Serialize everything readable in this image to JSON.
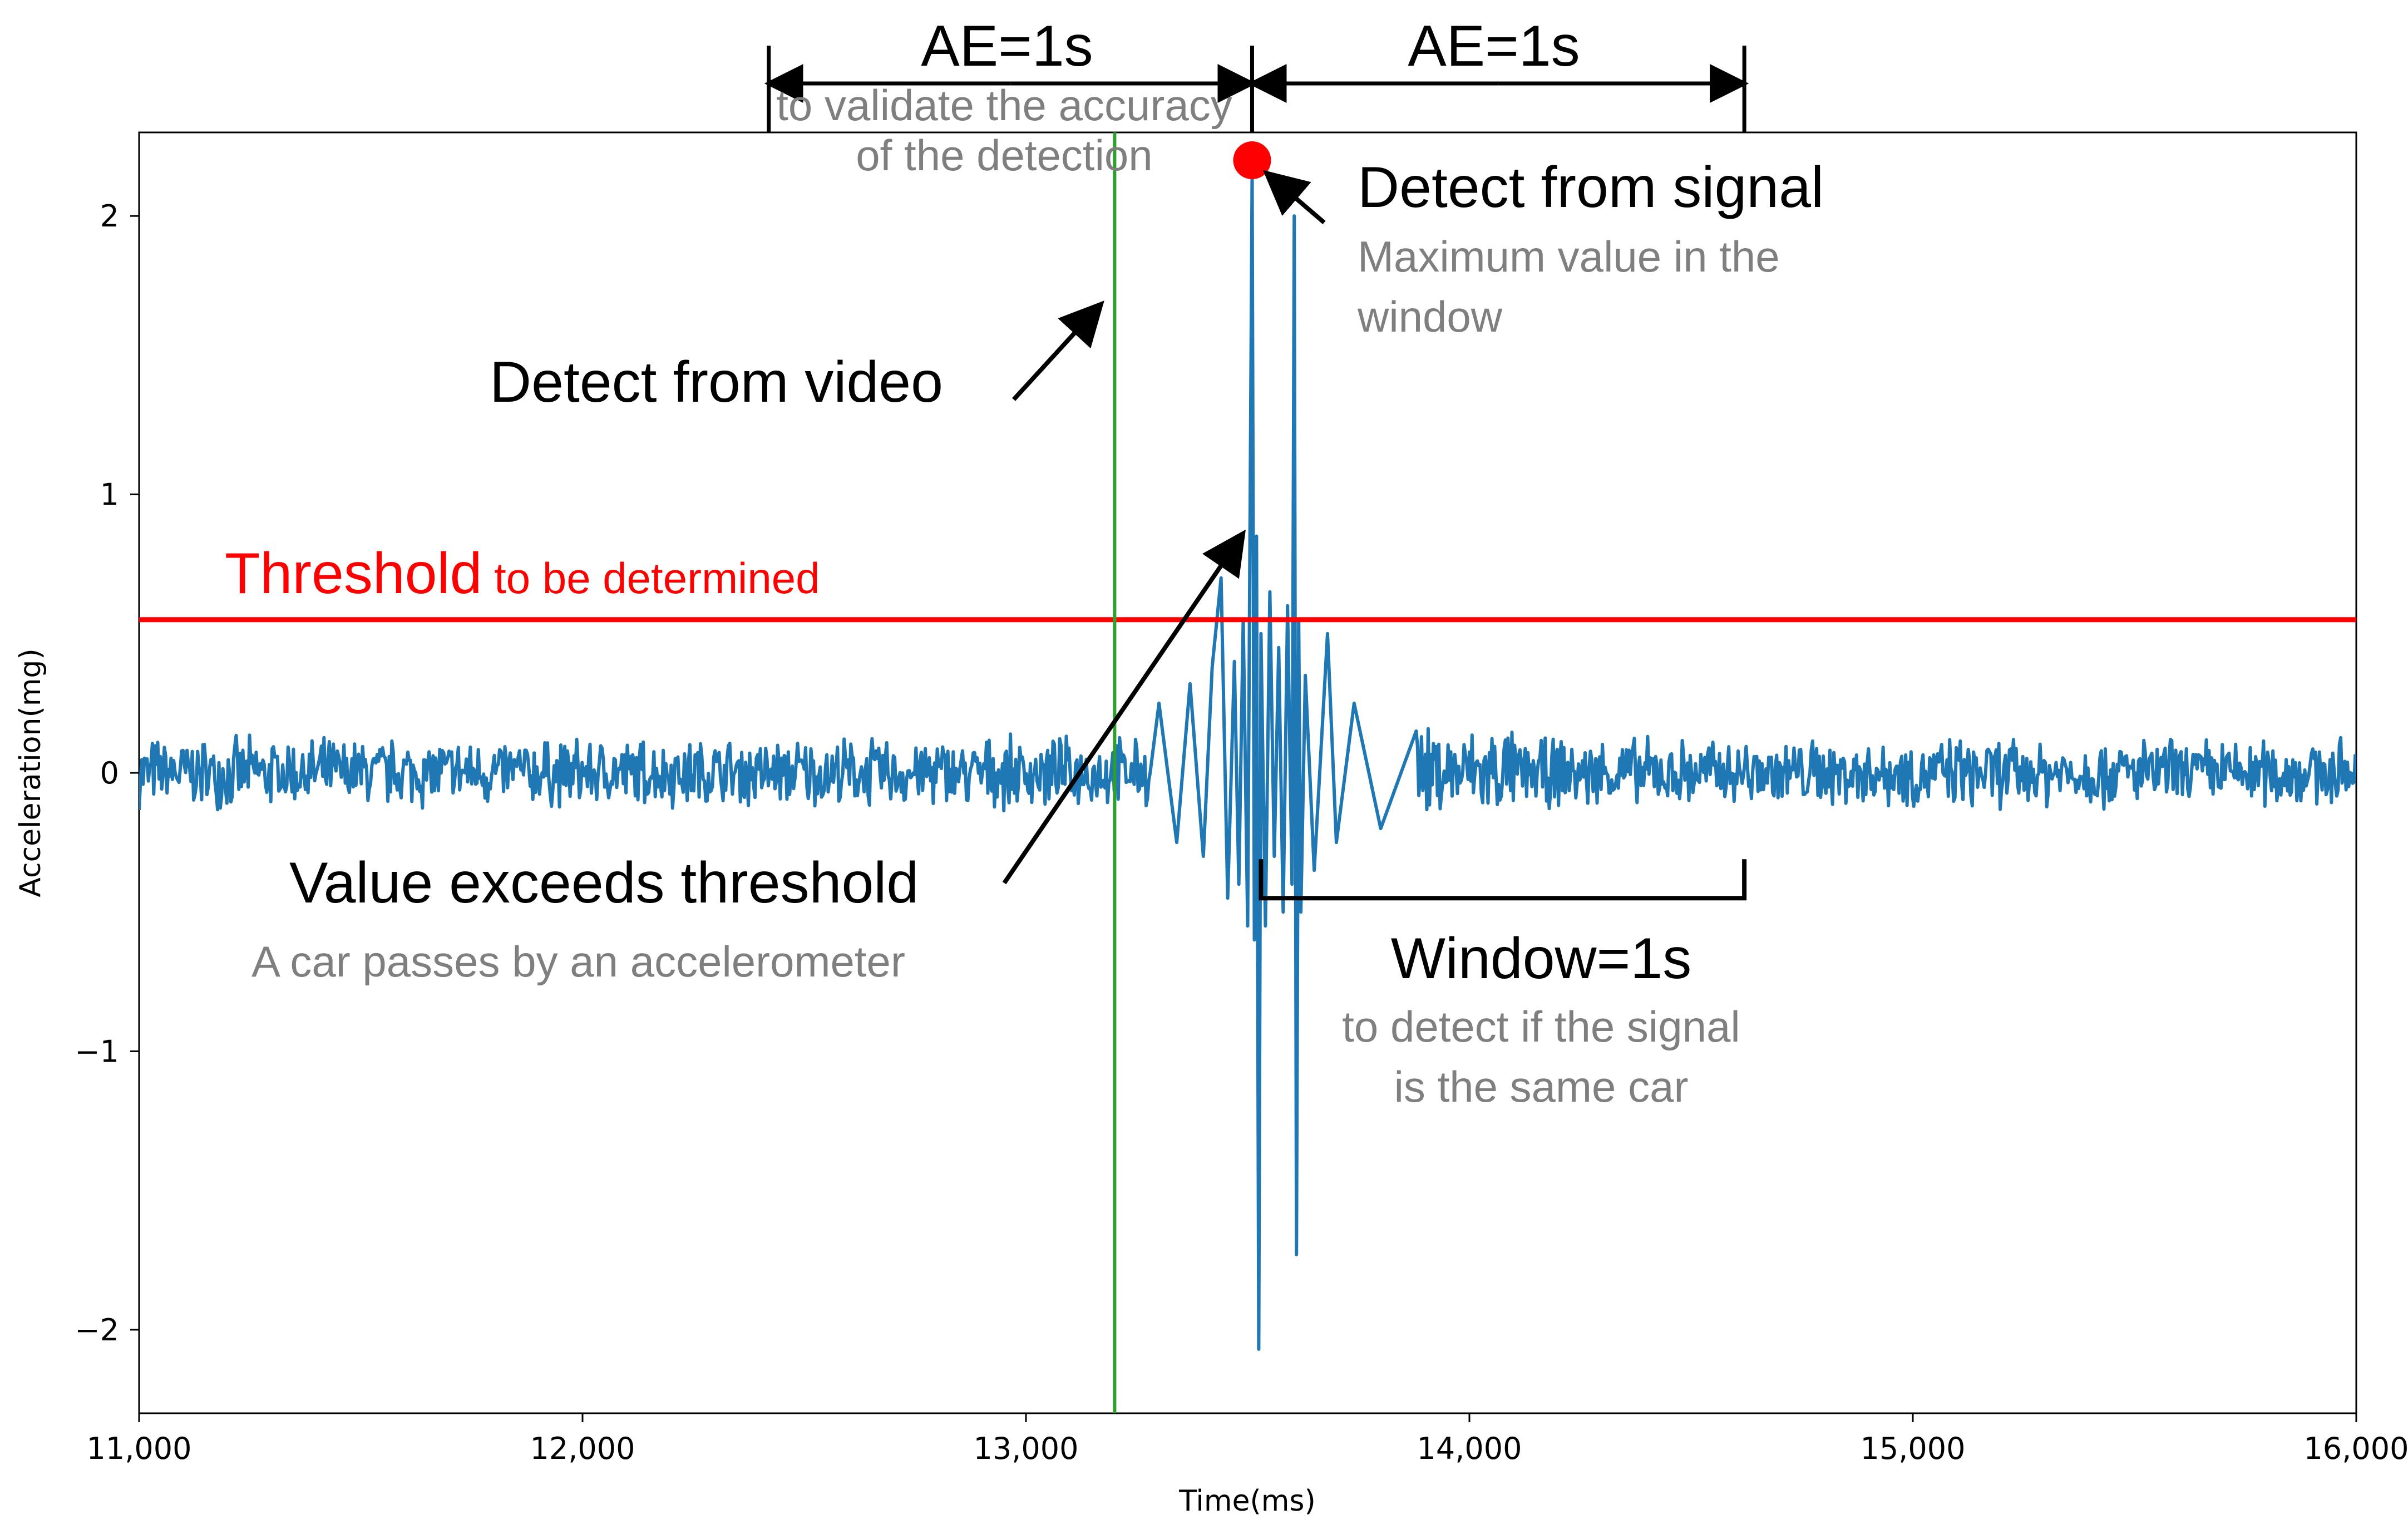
{
  "chart_data": {
    "type": "line",
    "title": "",
    "xlabel": "Time(ms)",
    "ylabel": "Acceleration(mg)",
    "xlim": [
      11000,
      16000
    ],
    "ylim": [
      -2.3,
      2.3
    ],
    "x_ticks": [
      11000,
      12000,
      13000,
      14000,
      15000,
      16000
    ],
    "x_tick_labels": [
      "11,000",
      "12,000",
      "13,000",
      "14,000",
      "15,000",
      "16,000"
    ],
    "y_ticks": [
      -2,
      -1,
      0,
      1,
      2
    ],
    "y_tick_labels": [
      "−2",
      "−1",
      "0",
      "1",
      "2"
    ],
    "grid": false,
    "series": [
      {
        "color": "#1f77b4",
        "noise_amplitude": 0.1,
        "x": [
          13280,
          13300,
          13340,
          13370,
          13400,
          13420,
          13440,
          13455,
          13470,
          13480,
          13490,
          13500,
          13505,
          13510,
          13515,
          13520,
          13525,
          13530,
          13540,
          13550,
          13560,
          13570,
          13580,
          13590,
          13600,
          13605,
          13610,
          13615,
          13620,
          13630,
          13650,
          13680,
          13700,
          13740,
          13800,
          13880
        ],
        "y": [
          0.0,
          0.25,
          -0.25,
          0.32,
          -0.3,
          0.38,
          0.7,
          -0.45,
          0.4,
          -0.4,
          0.55,
          -0.55,
          0.82,
          2.15,
          -0.6,
          0.85,
          -2.07,
          0.5,
          -0.55,
          0.65,
          -0.3,
          0.45,
          -0.5,
          0.6,
          -0.4,
          2.0,
          -1.73,
          0.55,
          -0.5,
          0.35,
          -0.35,
          0.5,
          -0.25,
          0.25,
          -0.2,
          0.15
        ]
      }
    ],
    "threshold": {
      "y": 0.55,
      "color": "#ff0000"
    },
    "video_detection": {
      "x": 13200,
      "color": "#2ca02c"
    },
    "signal_peak": {
      "x": 13510,
      "y": 2.2,
      "color": "#ff0000"
    },
    "ae_marker_x": [
      12420,
      13510,
      14620
    ],
    "window_x": [
      13530,
      14620
    ],
    "window_y": -0.45
  },
  "annotations": {
    "ae_left": "AE=1s",
    "ae_right": "AE=1s",
    "ae_sub_line1": "to validate the accuracy",
    "ae_sub_line2": "of the detection",
    "detect_signal": "Detect from signal",
    "detect_signal_sub1": "Maximum value in the",
    "detect_signal_sub2": "window",
    "detect_video": "Detect from video",
    "threshold_main": "Threshold",
    "threshold_sub": " to be determined",
    "value_exceeds": "Value exceeds threshold",
    "value_exceeds_sub": "A car passes by an accelerometer",
    "window": "Window=1s",
    "window_sub1": "to detect if the signal",
    "window_sub2": "is the same car"
  }
}
